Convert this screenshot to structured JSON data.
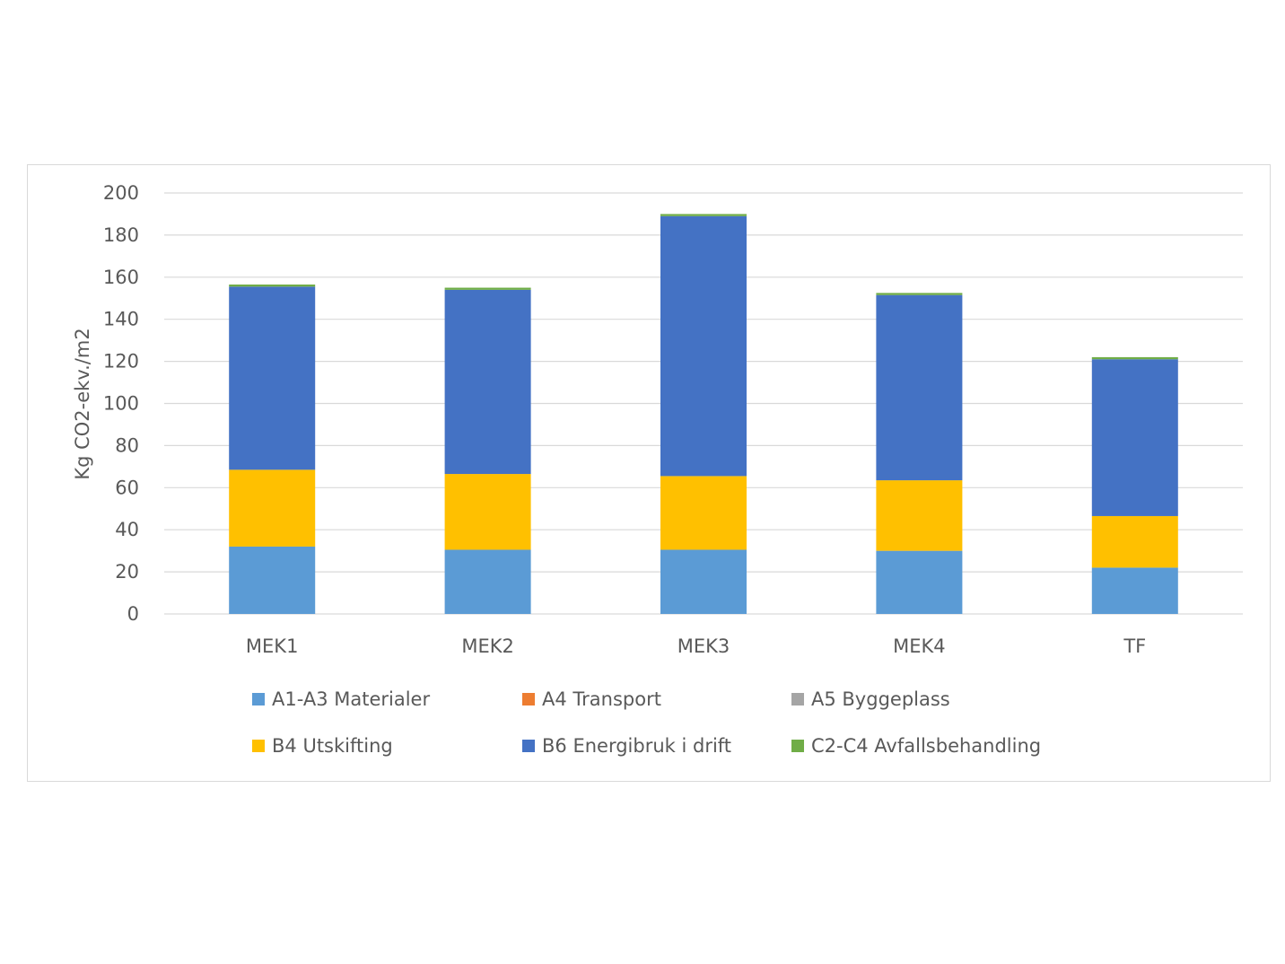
{
  "chart_data": {
    "type": "bar",
    "stacked": true,
    "title": "",
    "xlabel": "",
    "ylabel": "Kg CO2-ekv./m2",
    "ylim": [
      0,
      200
    ],
    "yticks": [
      0,
      20,
      40,
      60,
      80,
      100,
      120,
      140,
      160,
      180,
      200
    ],
    "grid": true,
    "legend_position": "bottom",
    "categories": [
      "MEK1",
      "MEK2",
      "MEK3",
      "MEK4",
      "TF"
    ],
    "series": [
      {
        "name": "A1-A3 Materialer",
        "color": "#5b9bd5",
        "values": [
          32,
          30.5,
          30.5,
          30,
          22
        ]
      },
      {
        "name": "A4 Transport",
        "color": "#ed7d31",
        "values": [
          0,
          0,
          0,
          0,
          0
        ]
      },
      {
        "name": "A5 Byggeplass",
        "color": "#a5a5a5",
        "values": [
          0,
          0,
          0,
          0,
          0
        ]
      },
      {
        "name": "B4 Utskifting",
        "color": "#ffc000",
        "values": [
          36.5,
          36,
          35,
          33.5,
          24.5
        ]
      },
      {
        "name": "B6 Energibruk i drift",
        "color": "#4472c4",
        "values": [
          87,
          87.5,
          123.5,
          88,
          74.5
        ]
      },
      {
        "name": "C2-C4 Avfallsbehandling",
        "color": "#70ad47",
        "values": [
          1,
          1,
          1,
          1,
          1
        ]
      }
    ]
  }
}
